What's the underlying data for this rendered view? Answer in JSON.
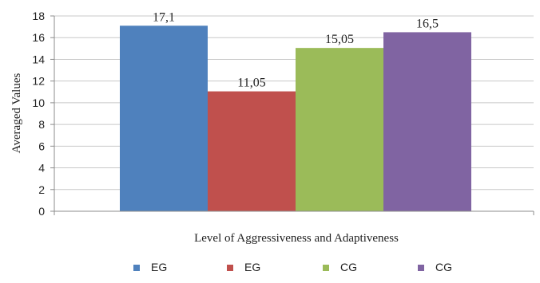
{
  "chart_data": {
    "type": "bar",
    "xlabel": "Level of Aggressiveness and Adaptiveness",
    "ylabel": "Averaged Values",
    "ylim": [
      0,
      18
    ],
    "yticks": [
      0,
      2,
      4,
      6,
      8,
      10,
      12,
      14,
      16,
      18
    ],
    "grid": true,
    "legend_position": "bottom",
    "series": [
      {
        "name": "EG",
        "value": 17.1,
        "label": "17,1",
        "color": "#4F81BD"
      },
      {
        "name": "EG",
        "value": 11.05,
        "label": "11,05",
        "color": "#C0504D"
      },
      {
        "name": "CG",
        "value": 15.05,
        "label": "15,05",
        "color": "#9BBB59"
      },
      {
        "name": "CG",
        "value": 16.5,
        "label": "16,5",
        "color": "#8064A2"
      }
    ]
  }
}
